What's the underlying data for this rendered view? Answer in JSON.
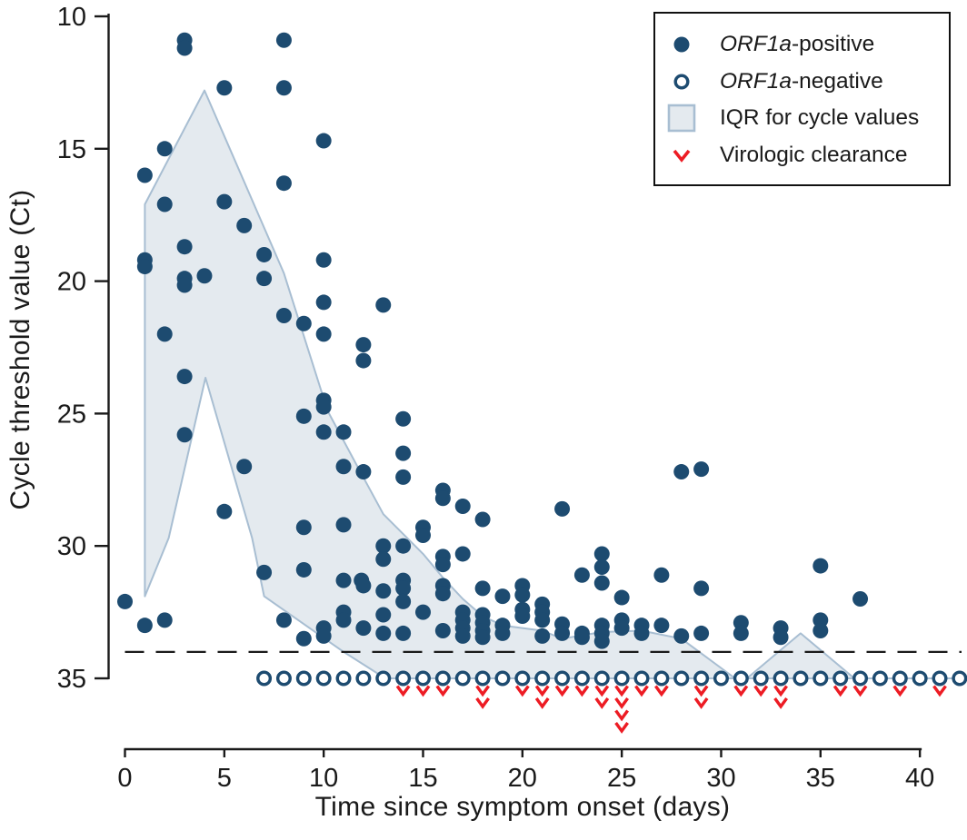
{
  "colors": {
    "navy": "#1d4b70",
    "iqr_fill": "#e4eaef",
    "iqr_border": "#a8bed2",
    "red": "#ed1c24",
    "axis": "#1a1a1a"
  },
  "legend": {
    "items": [
      {
        "marker": "filled-circle",
        "gene": "ORF1a",
        "rest": "-positive"
      },
      {
        "marker": "open-circle",
        "gene": "ORF1a",
        "rest": "-negative"
      },
      {
        "marker": "square",
        "gene": "",
        "rest": "IQR for cycle values"
      },
      {
        "marker": "chevron",
        "gene": "",
        "rest": "Virologic clearance"
      }
    ]
  },
  "chart_data": {
    "type": "scatter",
    "title": "",
    "xlabel": "Time since symptom onset (days)",
    "ylabel": "Cycle threshold value (Ct)",
    "x_ticks": [
      0,
      5,
      10,
      15,
      20,
      25,
      30,
      35,
      40
    ],
    "y_ticks": [
      10,
      15,
      20,
      25,
      30,
      35
    ],
    "xlim": [
      0,
      42.3
    ],
    "ylim": [
      10,
      35
    ],
    "y_axis_inverted": true,
    "grid": false,
    "legend_position": "top-right",
    "threshold_ct": 34,
    "negative_ct": 35,
    "series": [
      {
        "name": "ORF1a-positive",
        "marker": "filled-circle",
        "points": [
          [
            0,
            32.1
          ],
          [
            1,
            16.0
          ],
          [
            1,
            19.2
          ],
          [
            1,
            19.45
          ],
          [
            1,
            33.0
          ],
          [
            2,
            15.0
          ],
          [
            2,
            17.1
          ],
          [
            2,
            22.0
          ],
          [
            2,
            32.8
          ],
          [
            3,
            10.9
          ],
          [
            3,
            11.2
          ],
          [
            3,
            18.7
          ],
          [
            3,
            19.9
          ],
          [
            3,
            20.15
          ],
          [
            3,
            23.6
          ],
          [
            3,
            25.8
          ],
          [
            4,
            19.8
          ],
          [
            5,
            12.7
          ],
          [
            5,
            17.0
          ],
          [
            5,
            28.7
          ],
          [
            6,
            17.9
          ],
          [
            6,
            27.0
          ],
          [
            7,
            19.0
          ],
          [
            7,
            19.9
          ],
          [
            7,
            31.0
          ],
          [
            8,
            10.9
          ],
          [
            8,
            12.7
          ],
          [
            8,
            16.3
          ],
          [
            8,
            21.3
          ],
          [
            8,
            32.8
          ],
          [
            9,
            21.6
          ],
          [
            9,
            25.1
          ],
          [
            9,
            29.3
          ],
          [
            9,
            30.9
          ],
          [
            9,
            33.5
          ],
          [
            10,
            14.7
          ],
          [
            10,
            19.2
          ],
          [
            10,
            20.8
          ],
          [
            10,
            22.0
          ],
          [
            10,
            24.5
          ],
          [
            10,
            24.75
          ],
          [
            10,
            25.7
          ],
          [
            10,
            33.1
          ],
          [
            10,
            33.4
          ],
          [
            11,
            25.7
          ],
          [
            11,
            27.0
          ],
          [
            11,
            29.2
          ],
          [
            11,
            31.3
          ],
          [
            11,
            32.5
          ],
          [
            11,
            32.8
          ],
          [
            11.9,
            31.3
          ],
          [
            12,
            22.4
          ],
          [
            12,
            23.0
          ],
          [
            12,
            27.2
          ],
          [
            12,
            31.5
          ],
          [
            12,
            33.1
          ],
          [
            13,
            20.9
          ],
          [
            13,
            30.0
          ],
          [
            13,
            30.5
          ],
          [
            13,
            31.7
          ],
          [
            13,
            32.6
          ],
          [
            13,
            33.3
          ],
          [
            14,
            25.2
          ],
          [
            14,
            26.5
          ],
          [
            14,
            27.4
          ],
          [
            14,
            30.0
          ],
          [
            14,
            31.3
          ],
          [
            14,
            31.6
          ],
          [
            14,
            32.1
          ],
          [
            14,
            33.3
          ],
          [
            15,
            29.3
          ],
          [
            15,
            29.6
          ],
          [
            15,
            32.5
          ],
          [
            16,
            27.9
          ],
          [
            16,
            28.2
          ],
          [
            16,
            30.4
          ],
          [
            16,
            30.7
          ],
          [
            16,
            31.5
          ],
          [
            16,
            31.8
          ],
          [
            16,
            33.2
          ],
          [
            17,
            28.5
          ],
          [
            17,
            30.3
          ],
          [
            17,
            32.5
          ],
          [
            17,
            32.8
          ],
          [
            17,
            33.1
          ],
          [
            17,
            33.4
          ],
          [
            18,
            29.0
          ],
          [
            18,
            31.6
          ],
          [
            18,
            32.6
          ],
          [
            18,
            32.9
          ],
          [
            18,
            33.2
          ],
          [
            18,
            33.45
          ],
          [
            19,
            31.9
          ],
          [
            19,
            33.0
          ],
          [
            19,
            33.3
          ],
          [
            20,
            31.5
          ],
          [
            20,
            31.85
          ],
          [
            20,
            32.4
          ],
          [
            20,
            32.65
          ],
          [
            21,
            32.2
          ],
          [
            21,
            32.5
          ],
          [
            21,
            32.8
          ],
          [
            21,
            33.4
          ],
          [
            22,
            28.6
          ],
          [
            22,
            32.95
          ],
          [
            22,
            33.3
          ],
          [
            23,
            31.1
          ],
          [
            23,
            33.3
          ],
          [
            23,
            33.45
          ],
          [
            24,
            30.3
          ],
          [
            24,
            30.8
          ],
          [
            24,
            31.4
          ],
          [
            24,
            33.0
          ],
          [
            24,
            33.3
          ],
          [
            24,
            33.6
          ],
          [
            25,
            31.95
          ],
          [
            25,
            32.8
          ],
          [
            25,
            33.1
          ],
          [
            26,
            33.0
          ],
          [
            26,
            33.3
          ],
          [
            27,
            31.1
          ],
          [
            27,
            33.0
          ],
          [
            28,
            27.2
          ],
          [
            28,
            33.4
          ],
          [
            29,
            27.1
          ],
          [
            29,
            31.6
          ],
          [
            29,
            33.3
          ],
          [
            31,
            32.9
          ],
          [
            31,
            33.3
          ],
          [
            33,
            33.1
          ],
          [
            33,
            33.45
          ],
          [
            35,
            30.75
          ],
          [
            35,
            32.8
          ],
          [
            35,
            33.2
          ],
          [
            37,
            32.0
          ]
        ]
      },
      {
        "name": "ORF1a-negative",
        "marker": "open-circle",
        "ct": 35,
        "days": [
          7,
          8,
          9,
          10,
          11,
          12,
          13,
          14,
          15,
          16,
          17,
          18,
          19,
          20,
          21,
          22,
          23,
          24,
          25,
          26,
          27,
          28,
          29,
          30,
          31,
          32,
          33,
          34,
          35,
          36,
          37,
          38,
          39,
          40,
          41,
          42
        ]
      }
    ],
    "iqr_polygon": [
      [
        1,
        17.1
      ],
      [
        4,
        12.8
      ],
      [
        8,
        19.7
      ],
      [
        10.2,
        24.9
      ],
      [
        11.7,
        27.0
      ],
      [
        13,
        28.8
      ],
      [
        15,
        30.3
      ],
      [
        16,
        31.2
      ],
      [
        17,
        32.0
      ],
      [
        18,
        32.65
      ],
      [
        19,
        33.0
      ],
      [
        20,
        33.1
      ],
      [
        21,
        33.2
      ],
      [
        22,
        33.5
      ],
      [
        24,
        33.25
      ],
      [
        26,
        33.2
      ],
      [
        28,
        33.5
      ],
      [
        30.7,
        35
      ],
      [
        31.3,
        35
      ],
      [
        34,
        33.3
      ],
      [
        36.7,
        35
      ],
      [
        13.1,
        35
      ],
      [
        11,
        34.0
      ],
      [
        7,
        31.9
      ],
      [
        6.4,
        29.7
      ],
      [
        4.05,
        23.65
      ],
      [
        2.2,
        29.7
      ],
      [
        1,
        31.9
      ]
    ],
    "iqr_tail_line": {
      "from_day": 36.7,
      "to_day": 42.3,
      "ct": 35
    },
    "virologic_clearance": [
      {
        "day": 14,
        "count": 1
      },
      {
        "day": 15,
        "count": 1
      },
      {
        "day": 16,
        "count": 1
      },
      {
        "day": 18,
        "count": 2
      },
      {
        "day": 20,
        "count": 1
      },
      {
        "day": 21,
        "count": 2
      },
      {
        "day": 22,
        "count": 1
      },
      {
        "day": 23,
        "count": 1
      },
      {
        "day": 24,
        "count": 2
      },
      {
        "day": 25,
        "count": 4
      },
      {
        "day": 26,
        "count": 1
      },
      {
        "day": 27,
        "count": 1
      },
      {
        "day": 29,
        "count": 2
      },
      {
        "day": 31,
        "count": 1
      },
      {
        "day": 32,
        "count": 1
      },
      {
        "day": 33,
        "count": 2
      },
      {
        "day": 36,
        "count": 1
      },
      {
        "day": 37,
        "count": 1
      },
      {
        "day": 39,
        "count": 1
      },
      {
        "day": 41,
        "count": 1
      }
    ]
  }
}
